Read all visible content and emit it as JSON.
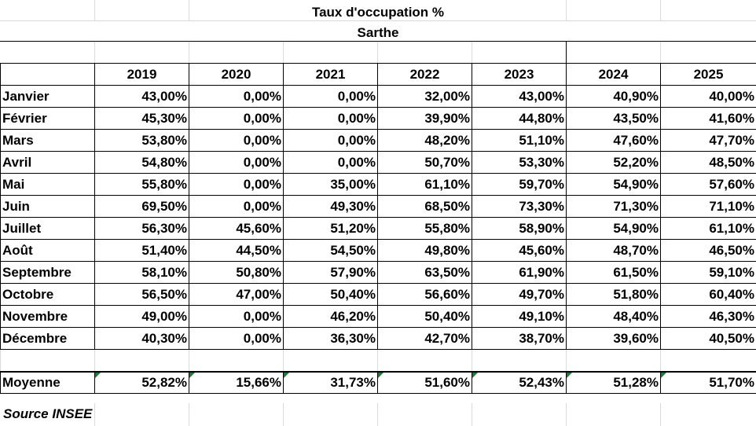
{
  "title": "Taux d'occupation %",
  "subtitle": "Sarthe",
  "years": [
    "2019",
    "2020",
    "2021",
    "2022",
    "2023",
    "2024",
    "2025"
  ],
  "rows": [
    {
      "month": "Janvier",
      "values": [
        "43,00%",
        "0,00%",
        "0,00%",
        "32,00%",
        "43,00%",
        "40,90%",
        "40,00%"
      ]
    },
    {
      "month": "Février",
      "values": [
        "45,30%",
        "0,00%",
        "0,00%",
        "39,90%",
        "44,80%",
        "43,50%",
        "41,60%"
      ]
    },
    {
      "month": "Mars",
      "values": [
        "53,80%",
        "0,00%",
        "0,00%",
        "48,20%",
        "51,10%",
        "47,60%",
        "47,70%"
      ]
    },
    {
      "month": "Avril",
      "values": [
        "54,80%",
        "0,00%",
        "0,00%",
        "50,70%",
        "53,30%",
        "52,20%",
        "48,50%"
      ]
    },
    {
      "month": "Mai",
      "values": [
        "55,80%",
        "0,00%",
        "35,00%",
        "61,10%",
        "59,70%",
        "54,90%",
        "57,60%"
      ]
    },
    {
      "month": "Juin",
      "values": [
        "69,50%",
        "0,00%",
        "49,30%",
        "68,50%",
        "73,30%",
        "71,30%",
        "71,10%"
      ]
    },
    {
      "month": "Juillet",
      "values": [
        "56,30%",
        "45,60%",
        "51,20%",
        "55,80%",
        "58,90%",
        "54,90%",
        "61,10%"
      ]
    },
    {
      "month": "Août",
      "values": [
        "51,40%",
        "44,50%",
        "54,50%",
        "49,80%",
        "45,60%",
        "48,70%",
        "46,50%"
      ]
    },
    {
      "month": "Septembre",
      "values": [
        "58,10%",
        "50,80%",
        "57,90%",
        "63,50%",
        "61,90%",
        "61,50%",
        "59,10%"
      ]
    },
    {
      "month": "Octobre",
      "values": [
        "56,50%",
        "47,00%",
        "50,40%",
        "56,60%",
        "49,70%",
        "51,80%",
        "60,40%"
      ]
    },
    {
      "month": "Novembre",
      "values": [
        "49,00%",
        "0,00%",
        "46,20%",
        "50,40%",
        "49,10%",
        "48,40%",
        "46,30%"
      ]
    },
    {
      "month": "Décembre",
      "values": [
        "40,30%",
        "0,00%",
        "36,30%",
        "42,70%",
        "38,70%",
        "39,60%",
        "40,50%"
      ]
    }
  ],
  "average": {
    "label": "Moyenne",
    "values": [
      "52,82%",
      "15,66%",
      "31,73%",
      "51,60%",
      "52,43%",
      "51,28%",
      "51,70%"
    ]
  },
  "source": "Source INSEE",
  "colors": {
    "warning_flag": "#1e7b34",
    "gridline": "#d9d9d9"
  }
}
